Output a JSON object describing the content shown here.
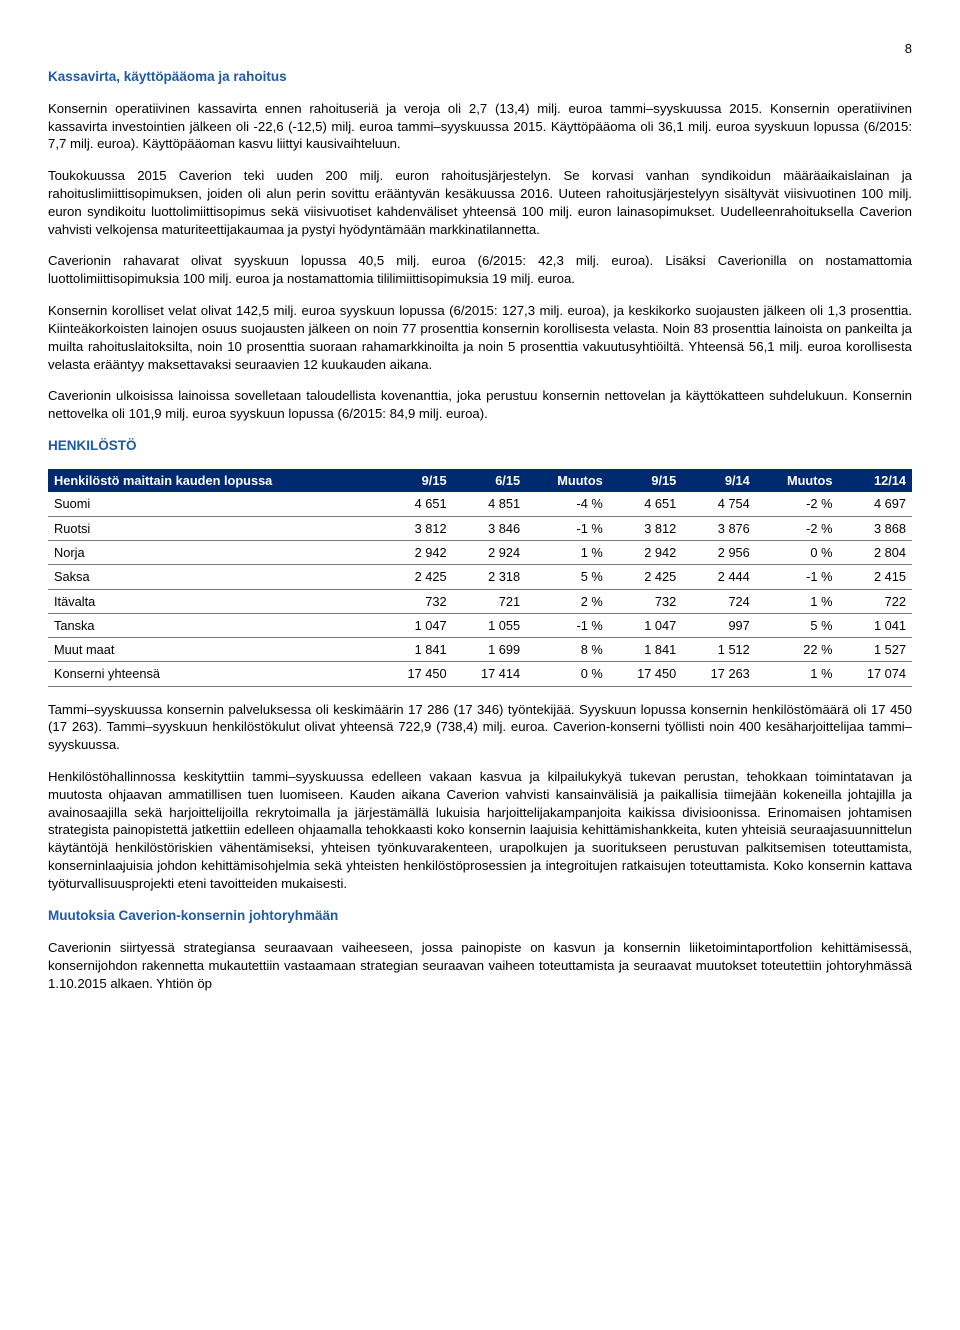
{
  "page_number": "8",
  "section_title_1": "Kassavirta, käyttöpääoma ja rahoitus",
  "para1": "Konsernin operatiivinen kassavirta ennen rahoituseriä ja veroja oli 2,7 (13,4) milj. euroa tammi–syyskuussa 2015. Konsernin operatiivinen kassavirta investointien jälkeen oli -22,6 (-12,5) milj. euroa tammi–syyskuussa 2015. Käyttöpääoma oli 36,1 milj. euroa syyskuun lopussa (6/2015: 7,7 milj. euroa). Käyttöpääoman kasvu liittyi kausivaihteluun.",
  "para2": "Toukokuussa 2015 Caverion teki uuden 200 milj. euron rahoitusjärjestelyn. Se korvasi vanhan syndikoidun määräaikaislainan ja rahoituslimiittisopimuksen, joiden oli alun perin sovittu erääntyvän kesäkuussa 2016. Uuteen rahoitusjärjestelyyn sisältyvät viisivuotinen 100 milj. euron syndikoitu luottolimiittisopimus sekä viisivuotiset kahdenväliset yhteensä 100 milj. euron lainasopimukset. Uudelleenrahoituksella Caverion vahvisti velkojensa maturiteettijakaumaa ja pystyi hyödyntämään markkinatilannetta.",
  "para3": "Caverionin rahavarat olivat syyskuun lopussa 40,5 milj. euroa (6/2015: 42,3 milj. euroa). Lisäksi Caverionilla on nostamattomia luottolimiittisopimuksia 100 milj. euroa ja nostamattomia tililimiittisopimuksia 19 milj. euroa.",
  "para4": "Konsernin korolliset velat olivat 142,5 milj. euroa syyskuun lopussa (6/2015: 127,3 milj. euroa), ja keskikorko suojausten jälkeen oli 1,3 prosenttia. Kiinteäkorkoisten lainojen osuus suojausten jälkeen on noin 77 prosenttia konsernin korollisesta velasta. Noin 83 prosenttia lainoista on pankeilta ja muilta rahoituslaitoksilta, noin 10 prosenttia suoraan rahamarkkinoilta ja noin 5 prosenttia vakuutusyhtiöiltä. Yhteensä 56,1 milj. euroa korollisesta velasta erääntyy maksettavaksi seuraavien 12 kuukauden aikana.",
  "para5": "Caverionin ulkoisissa lainoissa sovelletaan taloudellista kovenanttia, joka perustuu konsernin nettovelan ja käyttökatteen suhdelukuun. Konsernin nettovelka oli 101,9 milj. euroa syyskuun lopussa (6/2015: 84,9 milj. euroa).",
  "section_title_2": "HENKILÖSTÖ",
  "table": {
    "headers": [
      "Henkilöstö maittain kauden lopussa",
      "9/15",
      "6/15",
      "Muutos",
      "9/15",
      "9/14",
      "Muutos",
      "12/14"
    ],
    "rows": [
      [
        "Suomi",
        "4 651",
        "4 851",
        "-4 %",
        "4 651",
        "4 754",
        "-2 %",
        "4 697"
      ],
      [
        "Ruotsi",
        "3 812",
        "3 846",
        "-1 %",
        "3 812",
        "3 876",
        "-2 %",
        "3 868"
      ],
      [
        "Norja",
        "2 942",
        "2 924",
        "1 %",
        "2 942",
        "2 956",
        "0 %",
        "2 804"
      ],
      [
        "Saksa",
        "2 425",
        "2 318",
        "5 %",
        "2 425",
        "2 444",
        "-1 %",
        "2 415"
      ],
      [
        "Itävalta",
        "732",
        "721",
        "2 %",
        "732",
        "724",
        "1 %",
        "722"
      ],
      [
        "Tanska",
        "1 047",
        "1 055",
        "-1 %",
        "1 047",
        "997",
        "5 %",
        "1 041"
      ],
      [
        "Muut maat",
        "1 841",
        "1 699",
        "8 %",
        "1 841",
        "1 512",
        "22 %",
        "1 527"
      ],
      [
        "Konserni yhteensä",
        "17 450",
        "17 414",
        "0 %",
        "17 450",
        "17 263",
        "1 %",
        "17 074"
      ]
    ],
    "header_bg": "#002a6f",
    "header_color": "#ffffff",
    "border_color": "#777777"
  },
  "para6": "Tammi–syyskuussa konsernin palveluksessa oli keskimäärin 17 286 (17 346) työntekijää. Syyskuun lopussa konsernin henkilöstömäärä oli 17 450 (17 263). Tammi–syyskuun henkilöstökulut olivat yhteensä 722,9 (738,4) milj. euroa. Caverion-konserni työllisti noin 400 kesäharjoittelijaa tammi–syyskuussa.",
  "para7": "Henkilöstöhallinnossa keskityttiin tammi–syyskuussa edelleen vakaan kasvua ja kilpailukykyä tukevan perustan, tehokkaan toimintatavan ja muutosta ohjaavan ammatillisen tuen luomiseen. Kauden aikana Caverion vahvisti kansainvälisiä ja paikallisia tiimejään kokeneilla johtajilla ja avainosaajilla sekä harjoittelijoilla rekrytoimalla ja järjestämällä lukuisia harjoittelijakampanjoita kaikissa divisioonissa. Erinomaisen johtamisen strategista painopistettä jatkettiin edelleen ohjaamalla tehokkaasti koko konsernin laajuisia kehittämishankkeita, kuten yhteisiä seuraajasuunnittelun käytäntöjä henkilöstöriskien vähentämiseksi, yhteisen työnkuvarakenteen, urapolkujen ja suoritukseen perustuvan palkitsemisen toteuttamista, konserninlaajuisia johdon kehittämisohjelmia sekä yhteisten henkilöstöprosessien ja integroitujen ratkaisujen toteuttamista. Koko konsernin kattava työturvallisuusprojekti eteni tavoitteiden mukaisesti.",
  "section_title_3": "Muutoksia Caverion-konsernin johtoryhmään",
  "para8": "Caverionin siirtyessä strategiansa seuraavaan vaiheeseen, jossa painopiste on kasvun ja konsernin liiketoimintaportfolion kehittämisessä, konsernijohdon rakennetta mukautettiin vastaamaan strategian seuraavan vaiheen toteuttamista ja seuraavat muutokset toteutettiin johtoryhmässä 1.10.2015 alkaen. Yhtiön öp"
}
